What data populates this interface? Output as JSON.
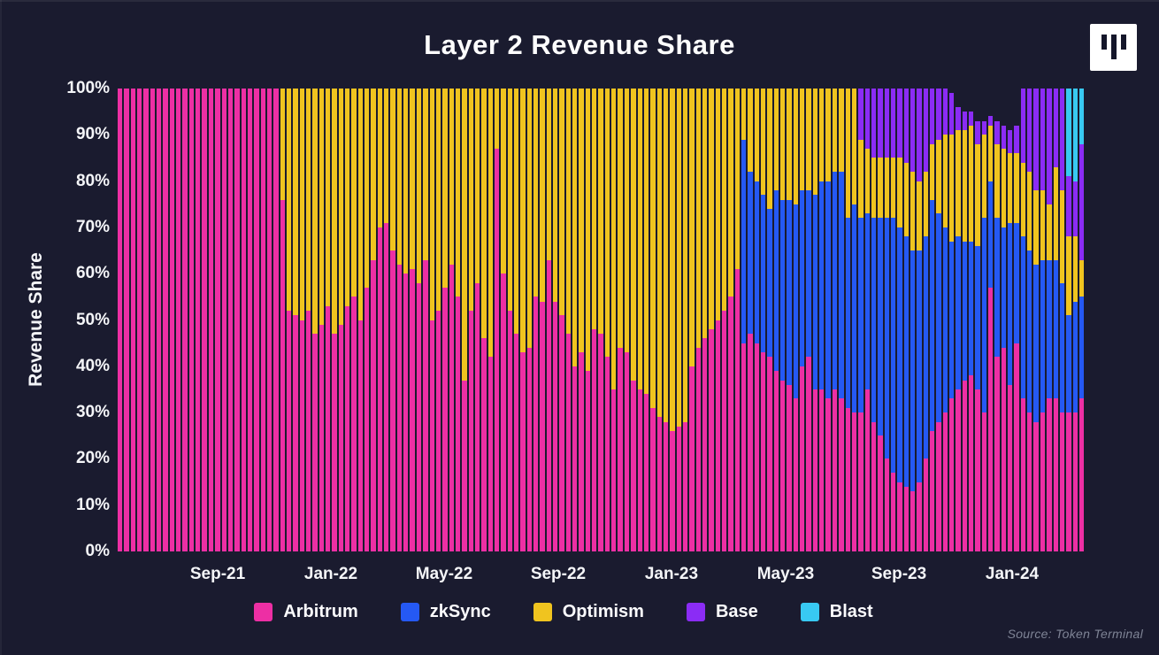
{
  "page": {
    "title": "Layer 2 Revenue Share",
    "source_note": "Source: Token Terminal"
  },
  "colors": {
    "background": "#1a1b2f",
    "text": "#ffffff",
    "muted_text": "#7f8496",
    "logo_background": "#ffffff",
    "logo_foreground": "#14162a",
    "arbitrum_pink": "#ed2fa4",
    "zksync_blue": "#2559f4",
    "optimism_yellow": "#f0c41f",
    "base_purple": "#8b2cf5",
    "blast_cyan": "#38c9f2"
  },
  "chart_data": {
    "type": "bar",
    "stacked": true,
    "stack_unit": "percent_share",
    "cadence": "weekly",
    "title": "Layer 2 Revenue Share",
    "ylabel": "Revenue Share",
    "xlabel": "",
    "ylim": [
      0,
      100
    ],
    "grid": false,
    "legend_position": "bottom",
    "y_ticks": [
      "0%",
      "10%",
      "20%",
      "30%",
      "40%",
      "50%",
      "60%",
      "70%",
      "80%",
      "90%",
      "100%"
    ],
    "x_ticks": [
      {
        "label": "Sep-21",
        "pos": 0.1034
      },
      {
        "label": "Jan-22",
        "pos": 0.2205
      },
      {
        "label": "May-22",
        "pos": 0.3376
      },
      {
        "label": "Sep-22",
        "pos": 0.4556
      },
      {
        "label": "Jan-23",
        "pos": 0.5727
      },
      {
        "label": "May-23",
        "pos": 0.6907
      },
      {
        "label": "Sep-23",
        "pos": 0.8079
      },
      {
        "label": "Jan-24",
        "pos": 0.925
      }
    ],
    "series": [
      {
        "name": "Arbitrum",
        "color": "#ed2fa4"
      },
      {
        "name": "zkSync",
        "color": "#2559f4"
      },
      {
        "name": "Optimism",
        "color": "#f0c41f"
      },
      {
        "name": "Base",
        "color": "#8b2cf5"
      },
      {
        "name": "Blast",
        "color": "#38c9f2"
      }
    ],
    "bars_note": "each bar = [Arbitrum, zkSync, Optimism, Base, Blast] % of weekly L2 revenue, Jun-2021 to Mar-2024",
    "bars": [
      [
        100,
        0,
        0,
        0,
        0
      ],
      [
        100,
        0,
        0,
        0,
        0
      ],
      [
        100,
        0,
        0,
        0,
        0
      ],
      [
        100,
        0,
        0,
        0,
        0
      ],
      [
        100,
        0,
        0,
        0,
        0
      ],
      [
        100,
        0,
        0,
        0,
        0
      ],
      [
        100,
        0,
        0,
        0,
        0
      ],
      [
        100,
        0,
        0,
        0,
        0
      ],
      [
        100,
        0,
        0,
        0,
        0
      ],
      [
        100,
        0,
        0,
        0,
        0
      ],
      [
        100,
        0,
        0,
        0,
        0
      ],
      [
        100,
        0,
        0,
        0,
        0
      ],
      [
        100,
        0,
        0,
        0,
        0
      ],
      [
        100,
        0,
        0,
        0,
        0
      ],
      [
        100,
        0,
        0,
        0,
        0
      ],
      [
        100,
        0,
        0,
        0,
        0
      ],
      [
        100,
        0,
        0,
        0,
        0
      ],
      [
        100,
        0,
        0,
        0,
        0
      ],
      [
        100,
        0,
        0,
        0,
        0
      ],
      [
        100,
        0,
        0,
        0,
        0
      ],
      [
        100,
        0,
        0,
        0,
        0
      ],
      [
        100,
        0,
        0,
        0,
        0
      ],
      [
        100,
        0,
        0,
        0,
        0
      ],
      [
        100,
        0,
        0,
        0,
        0
      ],
      [
        100,
        0,
        0,
        0,
        0
      ],
      [
        76,
        0,
        24,
        0,
        0
      ],
      [
        52,
        0,
        48,
        0,
        0
      ],
      [
        51,
        0,
        49,
        0,
        0
      ],
      [
        50,
        0,
        50,
        0,
        0
      ],
      [
        52,
        0,
        48,
        0,
        0
      ],
      [
        47,
        0,
        53,
        0,
        0
      ],
      [
        49,
        0,
        51,
        0,
        0
      ],
      [
        53,
        0,
        47,
        0,
        0
      ],
      [
        47,
        0,
        53,
        0,
        0
      ],
      [
        49,
        0,
        51,
        0,
        0
      ],
      [
        53,
        0,
        47,
        0,
        0
      ],
      [
        55,
        0,
        45,
        0,
        0
      ],
      [
        50,
        0,
        50,
        0,
        0
      ],
      [
        57,
        0,
        43,
        0,
        0
      ],
      [
        63,
        0,
        37,
        0,
        0
      ],
      [
        70,
        0,
        30,
        0,
        0
      ],
      [
        71,
        0,
        29,
        0,
        0
      ],
      [
        65,
        0,
        35,
        0,
        0
      ],
      [
        62,
        0,
        38,
        0,
        0
      ],
      [
        60,
        0,
        40,
        0,
        0
      ],
      [
        61,
        0,
        39,
        0,
        0
      ],
      [
        58,
        0,
        42,
        0,
        0
      ],
      [
        63,
        0,
        37,
        0,
        0
      ],
      [
        50,
        0,
        50,
        0,
        0
      ],
      [
        52,
        0,
        48,
        0,
        0
      ],
      [
        57,
        0,
        43,
        0,
        0
      ],
      [
        62,
        0,
        38,
        0,
        0
      ],
      [
        55,
        0,
        45,
        0,
        0
      ],
      [
        37,
        0,
        63,
        0,
        0
      ],
      [
        52,
        0,
        48,
        0,
        0
      ],
      [
        58,
        0,
        42,
        0,
        0
      ],
      [
        46,
        0,
        54,
        0,
        0
      ],
      [
        42,
        0,
        58,
        0,
        0
      ],
      [
        87,
        0,
        13,
        0,
        0
      ],
      [
        60,
        0,
        40,
        0,
        0
      ],
      [
        52,
        0,
        48,
        0,
        0
      ],
      [
        47,
        0,
        53,
        0,
        0
      ],
      [
        43,
        0,
        57,
        0,
        0
      ],
      [
        44,
        0,
        56,
        0,
        0
      ],
      [
        55,
        0,
        45,
        0,
        0
      ],
      [
        54,
        0,
        46,
        0,
        0
      ],
      [
        63,
        0,
        37,
        0,
        0
      ],
      [
        54,
        0,
        46,
        0,
        0
      ],
      [
        51,
        0,
        49,
        0,
        0
      ],
      [
        47,
        0,
        53,
        0,
        0
      ],
      [
        40,
        0,
        60,
        0,
        0
      ],
      [
        43,
        0,
        57,
        0,
        0
      ],
      [
        39,
        0,
        61,
        0,
        0
      ],
      [
        48,
        0,
        52,
        0,
        0
      ],
      [
        47,
        0,
        53,
        0,
        0
      ],
      [
        42,
        0,
        58,
        0,
        0
      ],
      [
        35,
        0,
        65,
        0,
        0
      ],
      [
        44,
        0,
        56,
        0,
        0
      ],
      [
        43,
        0,
        57,
        0,
        0
      ],
      [
        37,
        0,
        63,
        0,
        0
      ],
      [
        35,
        0,
        65,
        0,
        0
      ],
      [
        34,
        0,
        66,
        0,
        0
      ],
      [
        31,
        0,
        69,
        0,
        0
      ],
      [
        29,
        0,
        71,
        0,
        0
      ],
      [
        28,
        0,
        72,
        0,
        0
      ],
      [
        26,
        0,
        74,
        0,
        0
      ],
      [
        27,
        0,
        73,
        0,
        0
      ],
      [
        28,
        0,
        72,
        0,
        0
      ],
      [
        40,
        0,
        60,
        0,
        0
      ],
      [
        44,
        0,
        56,
        0,
        0
      ],
      [
        46,
        0,
        54,
        0,
        0
      ],
      [
        48,
        0,
        52,
        0,
        0
      ],
      [
        50,
        0,
        50,
        0,
        0
      ],
      [
        52,
        0,
        48,
        0,
        0
      ],
      [
        55,
        0,
        45,
        0,
        0
      ],
      [
        61,
        0,
        39,
        0,
        0
      ],
      [
        45,
        44,
        11,
        0,
        0
      ],
      [
        47,
        35,
        18,
        0,
        0
      ],
      [
        45,
        35,
        20,
        0,
        0
      ],
      [
        43,
        34,
        23,
        0,
        0
      ],
      [
        42,
        32,
        26,
        0,
        0
      ],
      [
        39,
        39,
        22,
        0,
        0
      ],
      [
        37,
        39,
        24,
        0,
        0
      ],
      [
        36,
        40,
        24,
        0,
        0
      ],
      [
        33,
        42,
        25,
        0,
        0
      ],
      [
        40,
        38,
        22,
        0,
        0
      ],
      [
        42,
        36,
        22,
        0,
        0
      ],
      [
        35,
        42,
        23,
        0,
        0
      ],
      [
        35,
        45,
        20,
        0,
        0
      ],
      [
        33,
        47,
        20,
        0,
        0
      ],
      [
        35,
        47,
        18,
        0,
        0
      ],
      [
        33,
        49,
        18,
        0,
        0
      ],
      [
        31,
        41,
        28,
        0,
        0
      ],
      [
        30,
        45,
        25,
        0,
        0
      ],
      [
        30,
        42,
        17,
        11,
        0
      ],
      [
        35,
        38,
        14,
        13,
        0
      ],
      [
        28,
        44,
        13,
        15,
        0
      ],
      [
        25,
        47,
        13,
        15,
        0
      ],
      [
        20,
        52,
        13,
        15,
        0
      ],
      [
        17,
        55,
        13,
        15,
        0
      ],
      [
        15,
        55,
        15,
        15,
        0
      ],
      [
        14,
        54,
        16,
        16,
        0
      ],
      [
        13,
        52,
        17,
        18,
        0
      ],
      [
        15,
        50,
        15,
        20,
        0
      ],
      [
        20,
        48,
        14,
        18,
        0
      ],
      [
        26,
        50,
        12,
        12,
        0
      ],
      [
        28,
        45,
        16,
        11,
        0
      ],
      [
        30,
        40,
        20,
        10,
        0
      ],
      [
        33,
        34,
        23,
        9,
        0
      ],
      [
        35,
        33,
        23,
        5,
        0
      ],
      [
        37,
        30,
        24,
        4,
        0
      ],
      [
        38,
        29,
        25,
        3,
        0
      ],
      [
        35,
        31,
        22,
        5,
        0
      ],
      [
        30,
        42,
        18,
        3,
        0
      ],
      [
        57,
        23,
        12,
        2,
        0
      ],
      [
        42,
        30,
        16,
        5,
        0
      ],
      [
        44,
        26,
        17,
        5,
        0
      ],
      [
        36,
        35,
        15,
        5,
        0
      ],
      [
        45,
        26,
        15,
        6,
        0
      ],
      [
        33,
        35,
        16,
        16,
        0
      ],
      [
        30,
        35,
        17,
        18,
        0
      ],
      [
        28,
        34,
        16,
        22,
        0
      ],
      [
        30,
        33,
        15,
        22,
        0
      ],
      [
        33,
        30,
        12,
        25,
        0
      ],
      [
        33,
        30,
        20,
        17,
        0
      ],
      [
        30,
        28,
        20,
        22,
        0
      ],
      [
        30,
        21,
        17,
        13,
        19
      ],
      [
        30,
        24,
        14,
        12,
        20
      ],
      [
        33,
        22,
        8,
        25,
        12
      ]
    ]
  }
}
